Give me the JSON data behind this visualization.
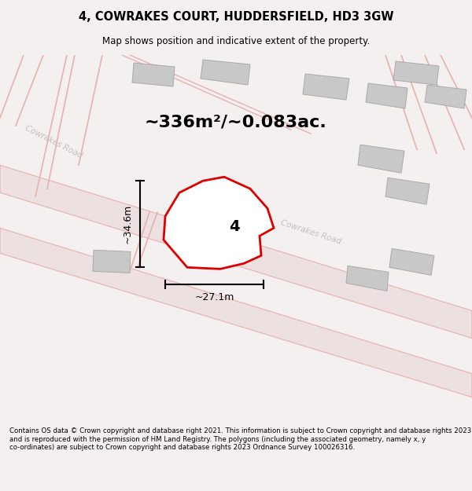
{
  "title": "4, COWRAKES COURT, HUDDERSFIELD, HD3 3GW",
  "subtitle": "Map shows position and indicative extent of the property.",
  "area_text": "~336m²/~0.083ac.",
  "dim_width": "~27.1m",
  "dim_height": "~34.6m",
  "plot_label": "4",
  "footer": "Contains OS data © Crown copyright and database right 2021. This information is subject to Crown copyright and database rights 2023 and is reproduced with the permission of HM Land Registry. The polygons (including the associated geometry, namely x, y co-ordinates) are subject to Crown copyright and database rights 2023 Ordnance Survey 100026316.",
  "bg_color": "#f5f0f0",
  "map_bg": "#f5f0f0",
  "road_color": "#e8b0b0",
  "building_color": "#c8c8c8",
  "plot_color": "#dd0000",
  "title_color": "#000000",
  "footer_color": "#000000"
}
